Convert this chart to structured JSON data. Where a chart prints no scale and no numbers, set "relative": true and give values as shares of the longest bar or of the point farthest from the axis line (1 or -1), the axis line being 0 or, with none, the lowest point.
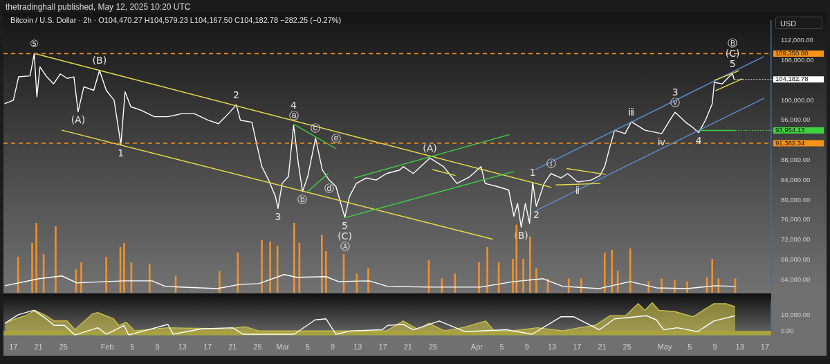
{
  "chart_data": [
    {
      "type": "line",
      "title": "Bitcoin / U.S. Dollar · 2h · O104,470.27 H104,579.23 L104,167.50 C104,182.78 −282.25 (−0.27%)",
      "subtitle": "thetradinghall published, May 12, 2025 10:20 UTC",
      "ylabel": "USD",
      "tick_labels": "y",
      "xlim": [
        "2025-01-15T10:00",
        "2025-05-18T00:00"
      ],
      "ylim": [
        63000,
        116000
      ],
      "yticks": [
        {
          "value": 64000,
          "label": "64,000.00"
        },
        {
          "value": 68000,
          "label": "68,000.00"
        },
        {
          "value": 72000,
          "label": "72,000.00"
        },
        {
          "value": 76000,
          "label": "76,000.00"
        },
        {
          "value": 80000,
          "label": "80,000.00"
        },
        {
          "value": 84000,
          "label": "84,000.00"
        },
        {
          "value": 88000,
          "label": "88,000.00"
        },
        {
          "value": 96000,
          "label": "96,000.00"
        },
        {
          "value": 100000,
          "label": "100,000.00"
        },
        {
          "value": 108000,
          "label": "108,000.00"
        },
        {
          "value": 112000,
          "label": "112,000.00"
        }
      ],
      "series": [
        {
          "color": "#ffffff",
          "x": [
            "2025-01-15T14:00",
            "2025-01-17T00:00",
            "2025-01-17T20:00",
            "2025-01-19T16:00",
            "2025-01-20T08:00",
            "2025-01-20T18:00",
            "2025-01-21T06:00",
            "2025-01-22T08:00",
            "2025-01-23T10:00",
            "2025-01-24T12:00",
            "2025-01-25T14:00",
            "2025-01-26T16:00",
            "2025-01-27T08:00",
            "2025-01-28T06:00",
            "2025-01-29T20:00",
            "2025-01-30T18:00",
            "2025-01-31T20:00",
            "2025-02-02T02:00",
            "2025-02-03T04:00",
            "2025-02-03T20:00",
            "2025-02-04T18:00",
            "2025-02-06T10:00",
            "2025-02-08T12:00",
            "2025-02-10T16:00",
            "2025-02-12T20:00",
            "2025-02-14T22:00",
            "2025-02-17T02:00",
            "2025-02-18T18:00",
            "2025-02-20T08:00",
            "2025-02-21T14:00",
            "2025-02-22T06:00",
            "2025-02-24T02:00",
            "2025-02-24T20:00",
            "2025-02-25T16:00",
            "2025-02-26T18:00",
            "2025-02-27T20:00",
            "2025-02-28T06:00",
            "2025-02-28T22:00",
            "2025-03-01T22:00",
            "2025-03-02T18:00",
            "2025-03-03T12:00",
            "2025-03-04T04:00",
            "2025-03-05T00:00",
            "2025-03-06T06:00",
            "2025-03-07T08:00",
            "2025-03-08T10:00",
            "2025-03-09T12:00",
            "2025-03-10T22:00",
            "2025-03-11T16:00",
            "2025-03-12T18:00",
            "2025-03-14T08:00",
            "2025-03-15T22:00",
            "2025-03-17T14:00",
            "2025-03-19T16:00",
            "2025-03-20T06:00",
            "2025-03-21T20:00",
            "2025-03-24T12:00",
            "2025-03-26T16:00",
            "2025-03-28T20:00",
            "2025-03-30T22:00",
            "2025-04-01T16:00",
            "2025-04-02T08:00",
            "2025-04-04T06:00",
            "2025-04-06T02:00",
            "2025-04-06T22:00",
            "2025-04-07T12:00",
            "2025-04-08T02:00",
            "2025-04-08T18:00",
            "2025-04-09T10:00",
            "2025-04-09T22:00",
            "2025-04-10T12:00",
            "2025-04-11T18:00",
            "2025-04-12T20:00",
            "2025-04-14T10:00",
            "2025-04-15T12:00",
            "2025-04-17T02:00",
            "2025-04-19T06:00",
            "2025-04-20T16:00",
            "2025-04-21T10:00",
            "2025-04-22T06:00",
            "2025-04-23T00:00",
            "2025-04-24T16:00",
            "2025-04-25T16:00",
            "2025-04-27T20:00",
            "2025-04-30T12:00",
            "2025-05-02T04:00",
            "2025-05-02T16:00",
            "2025-05-04T08:00",
            "2025-05-05T08:00",
            "2025-05-06T10:00",
            "2025-05-07T12:00",
            "2025-05-08T14:00",
            "2025-05-08T22:00",
            "2025-05-10T04:00",
            "2025-05-11T06:00",
            "2025-05-11T20:00",
            "2025-05-12T02:00"
          ],
          "values": [
            99300,
            100000,
            104700,
            104900,
            109400,
            100700,
            106700,
            104700,
            103300,
            105300,
            104400,
            104700,
            97700,
            102700,
            102000,
            106000,
            102000,
            100000,
            91100,
            101700,
            98700,
            98000,
            96700,
            96700,
            97300,
            97300,
            96000,
            95300,
            97300,
            99100,
            96000,
            95600,
            91300,
            86700,
            84000,
            80700,
            78300,
            83300,
            84700,
            95000,
            87300,
            81700,
            84700,
            92400,
            86000,
            84000,
            82700,
            76500,
            80700,
            83300,
            84400,
            84000,
            85300,
            86000,
            86700,
            85300,
            88400,
            86700,
            83300,
            84700,
            86700,
            83300,
            82700,
            82000,
            76700,
            79300,
            74500,
            79300,
            75300,
            83500,
            78700,
            83300,
            85300,
            84400,
            85300,
            83600,
            84000,
            84900,
            86700,
            90700,
            94000,
            93300,
            95700,
            94000,
            93300,
            96700,
            97600,
            95600,
            94700,
            93500,
            96000,
            99300,
            103600,
            103300,
            104700,
            105300,
            104182.78
          ]
        },
        {
          "color": "#e8dc4a",
          "x": [
            "2025-01-20T08:00",
            "2025-04-12T22:00"
          ],
          "values": [
            109400,
            82500
          ]
        },
        {
          "color": "#e8dc4a",
          "x": [
            "2025-01-24T18:00",
            "2025-04-03T14:00"
          ],
          "values": [
            94000,
            72100
          ]
        },
        {
          "color": "#3fd23f",
          "x": [
            "2025-03-10T20:00",
            "2025-04-06T22:00"
          ],
          "values": [
            76400,
            85700
          ]
        },
        {
          "color": "#3fd23f",
          "x": [
            "2025-03-12T10:00",
            "2025-04-06T04:00"
          ],
          "values": [
            84400,
            93100
          ]
        },
        {
          "color": "#3fd23f",
          "x": [
            "2025-03-02T18:00",
            "2025-03-09T12:00"
          ],
          "values": [
            95200,
            90300
          ]
        },
        {
          "color": "#3fd23f",
          "x": [
            "2025-03-05T00:00",
            "2025-03-08T06:00"
          ],
          "values": [
            81700,
            85300
          ]
        },
        {
          "color": "#5b8fd6",
          "x": [
            "2025-04-10T06:00",
            "2025-05-16T20:00"
          ],
          "values": [
            86000,
            108800
          ]
        },
        {
          "color": "#5b8fd6",
          "x": [
            "2025-04-10T12:00",
            "2025-05-16T20:00"
          ],
          "values": [
            77900,
            100400
          ]
        },
        {
          "color": "#e8dc4a",
          "x": [
            "2025-03-24T22:00",
            "2025-03-28T14:00"
          ],
          "values": [
            86100,
            84900
          ]
        },
        {
          "color": "#e8dc4a",
          "x": [
            "2025-04-15T08:00",
            "2025-04-21T14:00"
          ],
          "values": [
            86300,
            85100
          ]
        },
        {
          "color": "#e8dc4a",
          "x": [
            "2025-04-13T14:00",
            "2025-04-20T18:00"
          ],
          "values": [
            83000,
            83300
          ]
        },
        {
          "color": "#e8dc4a",
          "x": [
            "2025-05-08T22:00",
            "2025-05-12T20:00"
          ],
          "values": [
            104000,
            105900
          ]
        },
        {
          "color": "#e8dc4a",
          "x": [
            "2025-05-09T02:00",
            "2025-05-13T10:00"
          ],
          "values": [
            101900,
            104300
          ]
        },
        {
          "color": "#3fd23f",
          "x": [
            "2025-05-06T10:00",
            "2025-05-12T06:00"
          ],
          "values": [
            93954.13,
            93954.13
          ]
        }
      ],
      "ref_lines": [
        {
          "axis": "y",
          "value": 109350.8,
          "label": "109,350.80",
          "color": "#f7931a",
          "line_style": "dashed"
        },
        {
          "axis": "y",
          "value": 91382.34,
          "label": "91,382.34",
          "color": "#f7931a",
          "line_style": "dashed"
        }
      ],
      "annotations": [
        {
          "text": "104,182.78",
          "x": "2025-05-12T02:00",
          "y": 104182.78
        },
        {
          "text": "93,954.13",
          "x": "2025-05-12T06:00",
          "y": 93954.13
        },
        {
          "text": "⑤",
          "x": "2025-01-20T08:00",
          "y": 109400
        },
        {
          "text": "(B)",
          "x": "2025-01-30T18:00",
          "y": 106000
        },
        {
          "text": "(A)",
          "x": "2025-01-27T08:00",
          "y": 97700
        },
        {
          "text": "1",
          "x": "2025-02-03T04:00",
          "y": 91100
        },
        {
          "text": "2",
          "x": "2025-02-21T14:00",
          "y": 99100
        },
        {
          "text": "ⓐ",
          "x": "2025-03-02T18:00",
          "y": 95000
        },
        {
          "text": "4",
          "x": "2025-03-02T18:00",
          "y": 95000
        },
        {
          "text": "ⓒ",
          "x": "2025-03-06T06:00",
          "y": 92400
        },
        {
          "text": "ⓔ",
          "x": "2025-03-09T12:00",
          "y": 90300
        },
        {
          "text": "ⓓ",
          "x": "2025-03-08T10:00",
          "y": 84000
        },
        {
          "text": "ⓑ",
          "x": "2025-03-04T04:00",
          "y": 81700
        },
        {
          "text": "3",
          "x": "2025-02-28T06:00",
          "y": 78300
        },
        {
          "text": "5",
          "x": "2025-03-10T22:00",
          "y": 76500
        },
        {
          "text": "(C)",
          "x": "2025-03-10T22:00",
          "y": 76500
        },
        {
          "text": "Ⓐ",
          "x": "2025-03-10T22:00",
          "y": 76500
        },
        {
          "text": "(A)",
          "x": "2025-03-24T12:00",
          "y": 88400
        },
        {
          "text": "(B)",
          "x": "2025-04-08T02:00",
          "y": 74500
        },
        {
          "text": "1",
          "x": "2025-04-09T22:00",
          "y": 83500
        },
        {
          "text": "2",
          "x": "2025-04-10T12:00",
          "y": 78700
        },
        {
          "text": "ⓘ",
          "x": "2025-04-12T20:00",
          "y": 85300
        },
        {
          "text": "ⅱ",
          "x": "2025-04-17T02:00",
          "y": 83600
        },
        {
          "text": "ⅲ",
          "x": "2025-04-25T16:00",
          "y": 95700
        },
        {
          "text": "ⅳ",
          "x": "2025-04-30T12:00",
          "y": 93300
        },
        {
          "text": "ⓥ",
          "x": "2025-05-02T16:00",
          "y": 97600
        },
        {
          "text": "3",
          "x": "2025-05-02T16:00",
          "y": 97600
        },
        {
          "text": "4",
          "x": "2025-05-06T10:00",
          "y": 93500
        },
        {
          "text": "5",
          "x": "2025-05-11T20:00",
          "y": 105300
        },
        {
          "text": "(C)",
          "x": "2025-05-11T20:00",
          "y": 105300
        },
        {
          "text": "Ⓑ",
          "x": "2025-05-11T20:00",
          "y": 105300
        }
      ]
    },
    {
      "type": "bar",
      "relative": true,
      "tick_labels": false,
      "xlim": [
        "2025-01-15T10:00",
        "2025-05-18T00:00"
      ],
      "series": [
        {
          "color": "#f0902a",
          "x": [
            "2025-01-17T18:00",
            "2025-01-20T00:00",
            "2025-01-20T16:00",
            "2025-01-21T20:00",
            "2025-01-23T18:00",
            "2025-01-27T00:00",
            "2025-01-27T20:00",
            "2025-01-31T20:00",
            "2025-02-03T02:00",
            "2025-02-03T16:00",
            "2025-02-04T20:00",
            "2025-02-07T18:00",
            "2025-02-11T22:00",
            "2025-02-18T22:00",
            "2025-02-21T20:00",
            "2025-02-25T16:00",
            "2025-02-27T00:00",
            "2025-02-28T04:00",
            "2025-03-02T20:00",
            "2025-03-03T16:00",
            "2025-03-07T06:00",
            "2025-03-07T22:00",
            "2025-03-10T18:00",
            "2025-03-12T20:00",
            "2025-03-14T16:00",
            "2025-03-24T08:00",
            "2025-03-26T10:00",
            "2025-03-28T12:00",
            "2025-04-01T08:00",
            "2025-04-02T16:00",
            "2025-04-04T12:00",
            "2025-04-06T18:00",
            "2025-04-07T08:00",
            "2025-04-08T10:00",
            "2025-04-09T12:00",
            "2025-04-10T12:00",
            "2025-04-12T08:00",
            "2025-04-15T16:00",
            "2025-04-17T16:00",
            "2025-04-21T10:00",
            "2025-04-22T14:00",
            "2025-04-23T12:00",
            "2025-04-25T12:00",
            "2025-04-28T10:00",
            "2025-04-30T12:00",
            "2025-05-02T14:00",
            "2025-05-04T14:00",
            "2025-05-07T18:00",
            "2025-05-08T14:00",
            "2025-05-09T14:00",
            "2025-05-12T06:00"
          ],
          "values": [
            0.51,
            0.71,
            1,
            0.55,
            0.95,
            0.33,
            0.43,
            0.51,
            0.65,
            0.71,
            0.43,
            0.41,
            0.24,
            0.31,
            0.57,
            0.75,
            0.73,
            0.67,
            1,
            0.71,
            0.82,
            0.59,
            0.55,
            0.27,
            0.35,
            0.46,
            0.2,
            0.27,
            0.43,
            0.65,
            0.43,
            0.48,
            0.97,
            0.48,
            0.8,
            0.35,
            0.2,
            0.2,
            0.2,
            0.57,
            0.61,
            0.31,
            0.63,
            0.16,
            0.2,
            0.18,
            0.16,
            0.22,
            0.48,
            0.2,
            0.2
          ]
        },
        {
          "type": "line",
          "color": "#ffffff",
          "x": [
            "2025-01-15T16:00",
            "2025-01-21T02:00",
            "2025-01-24T18:00",
            "2025-01-27T04:00",
            "2025-01-31T20:00",
            "2025-02-03T16:00",
            "2025-02-08T04:00",
            "2025-02-10T06:00",
            "2025-02-18T12:00",
            "2025-02-22T06:00",
            "2025-02-25T04:00",
            "2025-03-01T06:00",
            "2025-03-03T06:00",
            "2025-03-07T22:00",
            "2025-03-09T22:00",
            "2025-03-14T20:00",
            "2025-03-17T18:00",
            "2025-03-24T08:00",
            "2025-04-01T14:00",
            "2025-04-06T22:00",
            "2025-04-11T14:00",
            "2025-04-14T18:00",
            "2025-04-20T14:00",
            "2025-04-25T12:00",
            "2025-04-29T16:00",
            "2025-05-04T14:00",
            "2025-05-09T02:00",
            "2025-05-12T06:00"
          ],
          "values": [
            0.1,
            0.2,
            0.24,
            0.14,
            0.16,
            0.17,
            0.17,
            0.09,
            0.06,
            0.12,
            0.13,
            0.26,
            0.22,
            0.23,
            0.16,
            0.17,
            0.09,
            0.08,
            0.08,
            0.16,
            0.2,
            0.09,
            0.06,
            0.16,
            0.07,
            0.06,
            0.1,
            0.09
          ]
        }
      ]
    },
    {
      "type": "area",
      "xlim": [
        "2025-01-15T10:00",
        "2025-05-18T00:00"
      ],
      "ylim": [
        -3000,
        19000
      ],
      "yticks": [
        {
          "value": 10000,
          "label": "10,000.00"
        },
        {
          "value": 0,
          "label": "0.00"
        }
      ],
      "bands": [
        {
          "axis": "y",
          "from": -3000,
          "to": 0,
          "color": "#a9a13e"
        }
      ],
      "xticks": [
        {
          "value": "2025-01-17",
          "label": "17"
        },
        {
          "value": "2025-01-21",
          "label": "21"
        },
        {
          "value": "2025-01-25",
          "label": "25"
        },
        {
          "value": "2025-02-01",
          "label": "Feb"
        },
        {
          "value": "2025-02-05",
          "label": "5"
        },
        {
          "value": "2025-02-09",
          "label": "9"
        },
        {
          "value": "2025-02-13",
          "label": "13"
        },
        {
          "value": "2025-02-17",
          "label": "17"
        },
        {
          "value": "2025-02-21",
          "label": "21"
        },
        {
          "value": "2025-02-25",
          "label": "25"
        },
        {
          "value": "2025-03-01",
          "label": "Mar"
        },
        {
          "value": "2025-03-05",
          "label": "5"
        },
        {
          "value": "2025-03-09",
          "label": "9"
        },
        {
          "value": "2025-03-13",
          "label": "13"
        },
        {
          "value": "2025-03-17",
          "label": "17"
        },
        {
          "value": "2025-03-21",
          "label": "21"
        },
        {
          "value": "2025-03-25",
          "label": "25"
        },
        {
          "value": "2025-04-01",
          "label": "Apr"
        },
        {
          "value": "2025-04-05",
          "label": "5"
        },
        {
          "value": "2025-04-09",
          "label": "9"
        },
        {
          "value": "2025-04-13",
          "label": "13"
        },
        {
          "value": "2025-04-17",
          "label": "17"
        },
        {
          "value": "2025-04-21",
          "label": "21"
        },
        {
          "value": "2025-04-25",
          "label": "25"
        },
        {
          "value": "2025-05-01",
          "label": "May"
        },
        {
          "value": "2025-05-05",
          "label": "5"
        },
        {
          "value": "2025-05-09",
          "label": "9"
        },
        {
          "value": "2025-05-13",
          "label": "13"
        },
        {
          "value": "2025-05-17",
          "label": "17"
        }
      ],
      "series": [
        {
          "color": "#c9c04a",
          "x": [
            "2025-01-15T16:00",
            "2025-01-17T08:00",
            "2025-01-18T22:00",
            "2025-01-20T10:00",
            "2025-01-22T06:00",
            "2025-01-23T12:00",
            "2025-01-25T14:00",
            "2025-01-26T20:00",
            "2025-01-27T14:00",
            "2025-01-29T16:00",
            "2025-01-30T12:00",
            "2025-02-02T00:00",
            "2025-02-02T20:00",
            "2025-02-04T00:00",
            "2025-02-05T08:00",
            "2025-02-10T16:00",
            "2025-02-20T02:00",
            "2025-02-23T00:00",
            "2025-02-25T04:00",
            "2025-03-07T06:00",
            "2025-03-17T14:00",
            "2025-03-20T06:00",
            "2025-03-22T16:00",
            "2025-03-24T08:00",
            "2025-03-26T20:00",
            "2025-03-29T16:00",
            "2025-04-02T10:00",
            "2025-04-03T18:00",
            "2025-04-06T14:00",
            "2025-04-10T16:00",
            "2025-04-14T18:00",
            "2025-04-17T08:00",
            "2025-04-19T20:00",
            "2025-04-22T06:00",
            "2025-04-24T18:00",
            "2025-04-26T18:00",
            "2025-04-27T20:00",
            "2025-04-29T00:00",
            "2025-04-30T02:00",
            "2025-05-02T14:00",
            "2025-05-05T12:00",
            "2025-05-08T20:00",
            "2025-05-10T20:00",
            "2025-05-12T06:00"
          ],
          "values": [
            4900,
            7800,
            9800,
            13300,
            9800,
            6400,
            6400,
            700,
            3500,
            11100,
            11800,
            7800,
            3500,
            5600,
            0,
            2000,
            1300,
            2700,
            0,
            0,
            0,
            6400,
            700,
            4900,
            0,
            2000,
            6400,
            0,
            0,
            2000,
            0,
            2000,
            3500,
            9800,
            9800,
            17600,
            13300,
            18200,
            13300,
            12500,
            9100,
            17600,
            17600,
            15500
          ]
        },
        {
          "type": "line",
          "color": "#ffffff",
          "x": [
            "2025-01-15T16:00",
            "2025-01-17T18:00",
            "2025-01-20T06:00",
            "2025-01-22T06:00",
            "2025-01-23T12:00",
            "2025-01-25T04:00",
            "2025-01-26T20:00",
            "2025-01-30T12:00",
            "2025-01-31T20:00",
            "2025-02-03T16:00",
            "2025-02-04T10:00",
            "2025-02-10T16:00",
            "2025-02-11T12:00",
            "2025-02-16T00:00",
            "2025-02-21T00:00",
            "2025-02-22T16:00",
            "2025-03-02T20:00",
            "2025-03-06T04:00",
            "2025-03-07T22:00",
            "2025-03-09T12:00",
            "2025-03-11T22:00",
            "2025-03-16T22:00",
            "2025-03-17T18:00",
            "2025-03-20T06:00",
            "2025-03-21T20:00",
            "2025-03-26T00:00",
            "2025-03-30T02:00",
            "2025-04-05T18:00",
            "2025-04-09T20:00",
            "2025-04-14T10:00",
            "2025-04-16T12:00",
            "2025-04-20T14:00",
            "2025-04-23T00:00",
            "2025-04-28T02:00",
            "2025-04-29T16:00",
            "2025-04-30T20:00",
            "2025-05-03T00:00",
            "2025-05-06T06:00",
            "2025-05-08T20:00",
            "2025-05-12T06:00"
          ],
          "values": [
            4900,
            10400,
            13300,
            7800,
            3500,
            3500,
            -2700,
            2000,
            -2200,
            3500,
            -2700,
            4200,
            -2200,
            1300,
            2000,
            -2200,
            -2200,
            7100,
            7800,
            -2200,
            0,
            700,
            3500,
            4200,
            700,
            6400,
            -500,
            700,
            -2200,
            9100,
            9100,
            700,
            7800,
            9800,
            7100,
            700,
            2000,
            -500,
            6400,
            9800
          ]
        }
      ]
    }
  ]
}
